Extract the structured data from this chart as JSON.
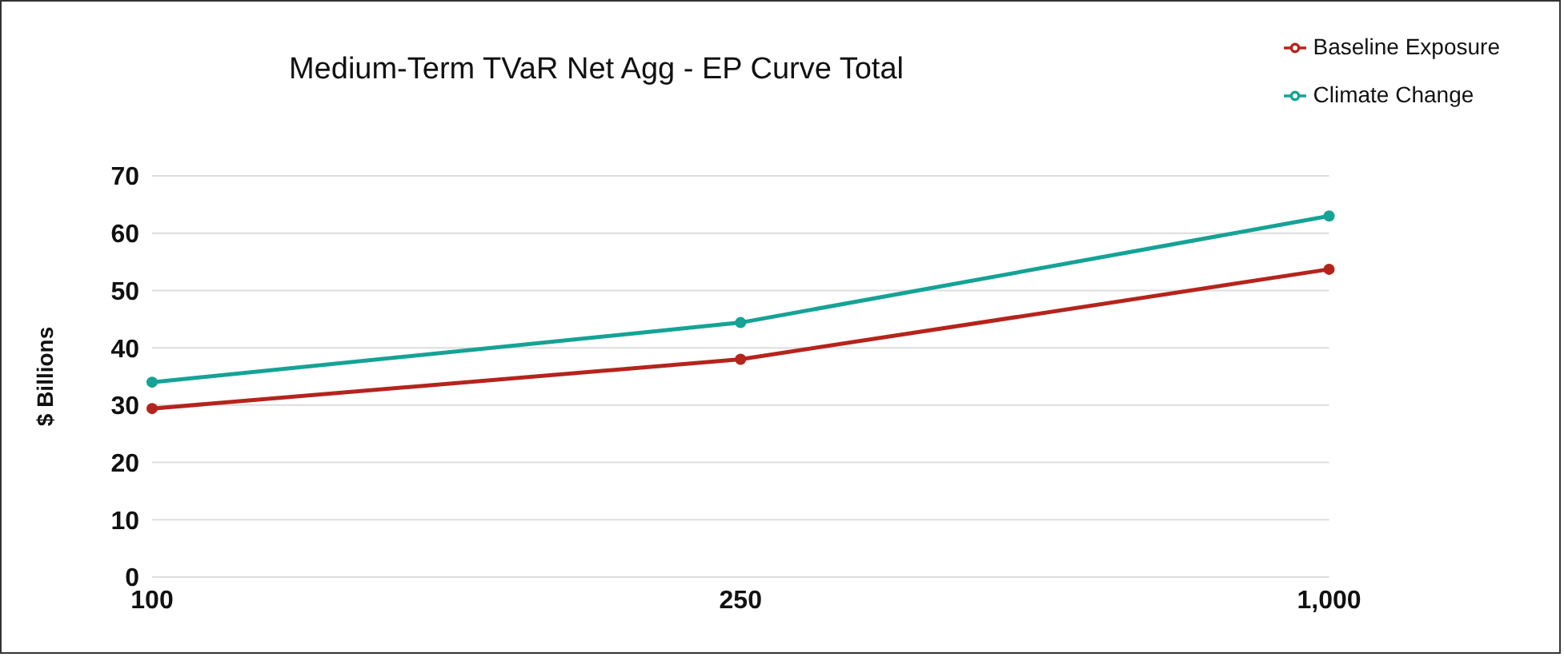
{
  "chart_data": {
    "type": "line",
    "title": "Medium-Term TVaR Net Agg - EP Curve Total",
    "ylabel": "$ Billions",
    "categories": [
      "100",
      "250",
      "1,000"
    ],
    "series": [
      {
        "name": "Baseline Exposure",
        "color": "#b5241c",
        "values": [
          29.4,
          38.0,
          53.7
        ]
      },
      {
        "name": "Climate Change",
        "color": "#14a395",
        "values": [
          34.0,
          44.4,
          63.0
        ]
      }
    ],
    "ylim": [
      0,
      70
    ],
    "yticks": [
      0,
      10,
      20,
      30,
      40,
      50,
      60,
      70
    ],
    "grid": "y",
    "legend": "top right",
    "marker": "circle",
    "line_style": "solid"
  }
}
